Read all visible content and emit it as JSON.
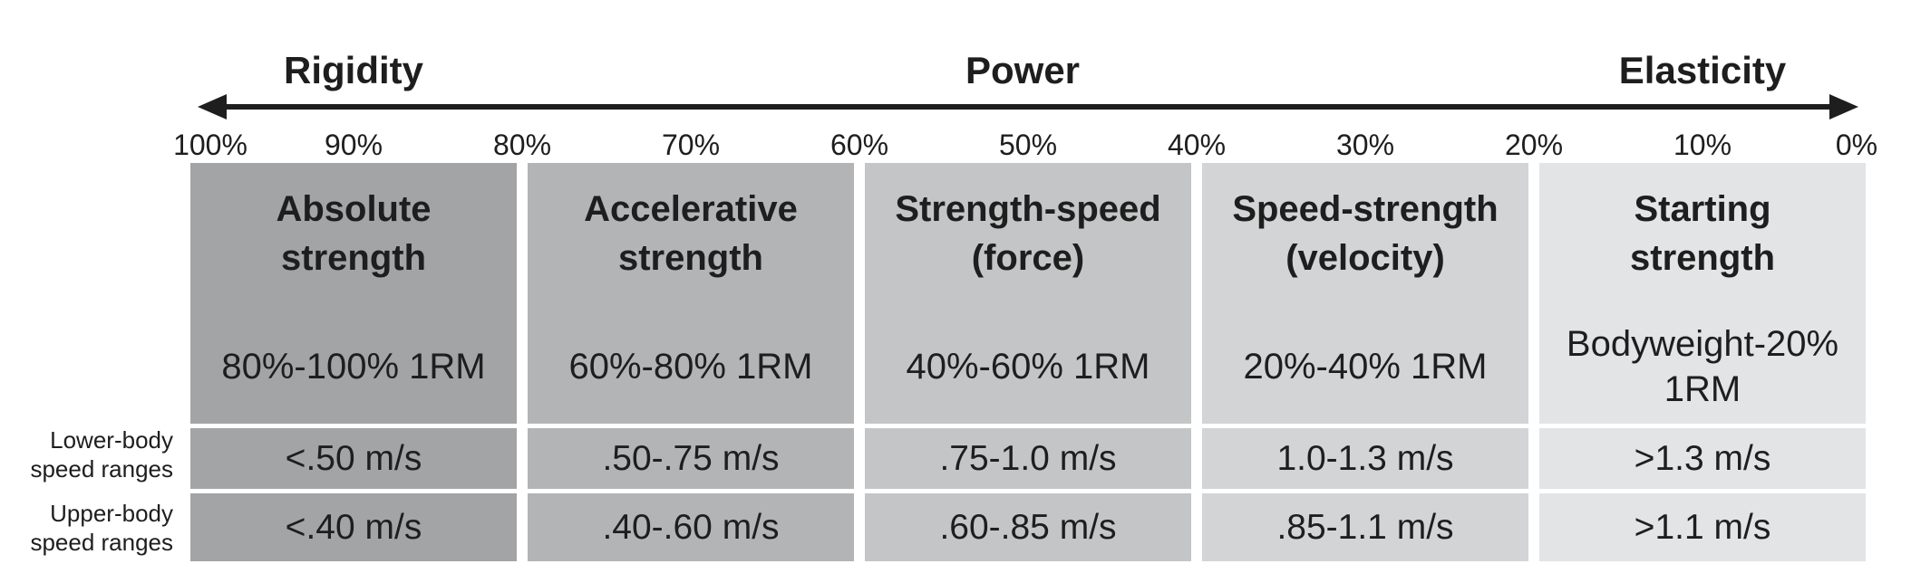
{
  "headings": {
    "left": "Rigidity",
    "center": "Power",
    "right": "Elasticity"
  },
  "ticks": [
    "100%",
    "90%",
    "80%",
    "70%",
    "60%",
    "50%",
    "40%",
    "30%",
    "20%",
    "10%",
    "0%"
  ],
  "row_labels": {
    "lower": [
      "Lower-body",
      "speed ranges"
    ],
    "upper": [
      "Upper-body",
      "speed ranges"
    ]
  },
  "columns": [
    {
      "title": [
        "Absolute",
        "strength"
      ],
      "range": [
        "80%-100% 1RM"
      ],
      "lower": "<.50 m/s",
      "upper": "<.40 m/s",
      "color": "#a3a4a5"
    },
    {
      "title": [
        "Accelerative",
        "strength"
      ],
      "range": [
        "60%-80% 1RM"
      ],
      "lower": ".50-.75 m/s",
      "upper": ".40-.60 m/s",
      "color": "#b3b4b5"
    },
    {
      "title": [
        "Strength-speed",
        "(force)"
      ],
      "range": [
        "40%-60% 1RM"
      ],
      "lower": ".75-1.0 m/s",
      "upper": ".60-.85 m/s",
      "color": "#c4c5c6"
    },
    {
      "title": [
        "Speed-strength",
        "(velocity)"
      ],
      "range": [
        "20%-40% 1RM"
      ],
      "lower": "1.0-1.3 m/s",
      "upper": ".85-1.1 m/s",
      "color": "#d3d4d5"
    },
    {
      "title": [
        "Starting",
        "strength"
      ],
      "range": [
        "Bodyweight-20%",
        "1RM"
      ],
      "lower": ">1.3 m/s",
      "upper": ">1.1 m/s",
      "color": "#e3e4e5"
    }
  ]
}
